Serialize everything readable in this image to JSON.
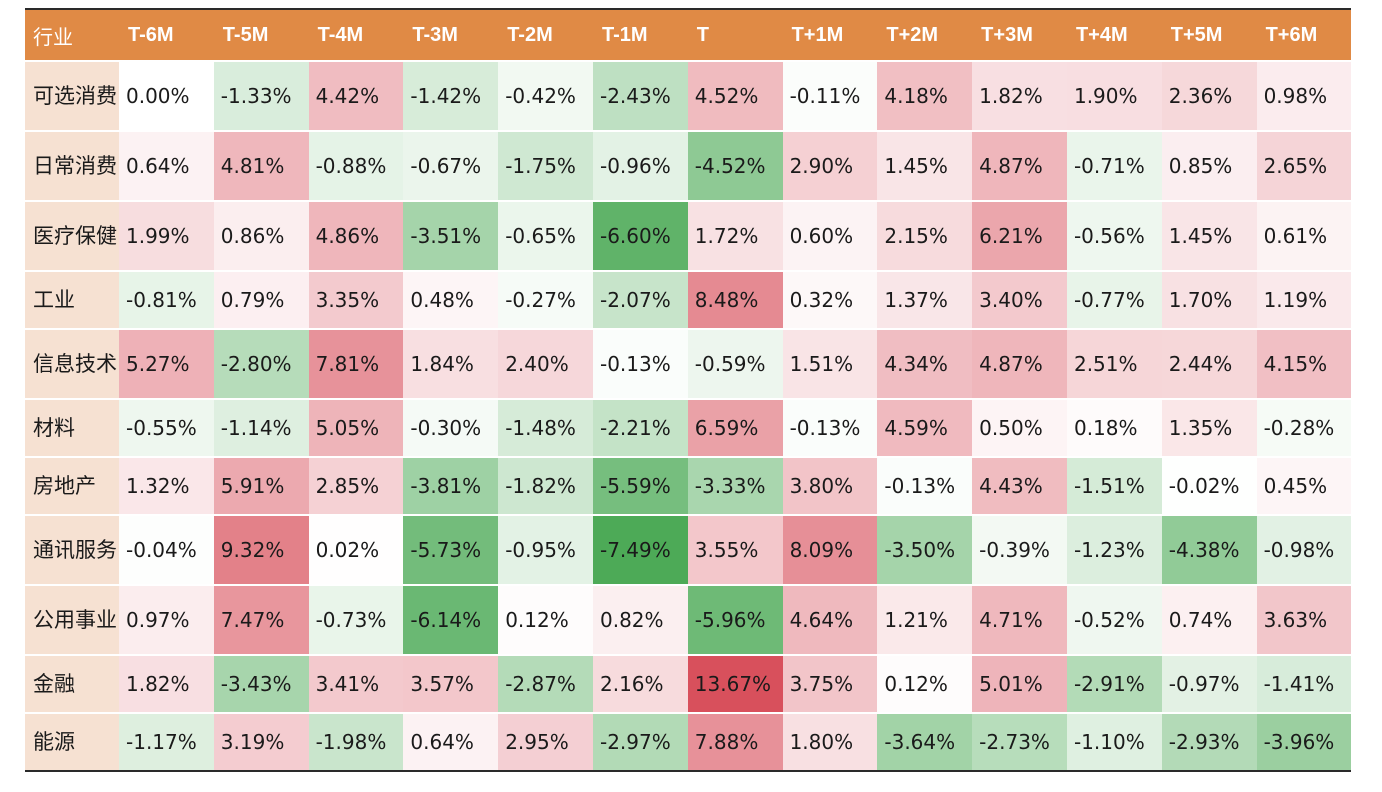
{
  "table": {
    "corner_label": "行业",
    "columns": [
      "T-6M",
      "T-5M",
      "T-4M",
      "T-3M",
      "T-2M",
      "T-1M",
      "T",
      "T+1M",
      "T+2M",
      "T+3M",
      "T+4M",
      "T+5M",
      "T+6M"
    ],
    "rows": [
      {
        "label": "可选消费",
        "cells": [
          "0.00%",
          "-1.33%",
          "4.42%",
          "-1.42%",
          "-0.42%",
          "-2.43%",
          "4.52%",
          "-0.11%",
          "4.18%",
          "1.82%",
          "1.90%",
          "2.36%",
          "0.98%"
        ]
      },
      {
        "label": "日常消费",
        "cells": [
          "0.64%",
          "4.81%",
          "-0.88%",
          "-0.67%",
          "-1.75%",
          "-0.96%",
          "-4.52%",
          "2.90%",
          "1.45%",
          "4.87%",
          "-0.71%",
          "0.85%",
          "2.65%"
        ]
      },
      {
        "label": "医疗保健",
        "cells": [
          "1.99%",
          "0.86%",
          "4.86%",
          "-3.51%",
          "-0.65%",
          "-6.60%",
          "1.72%",
          "0.60%",
          "2.15%",
          "6.21%",
          "-0.56%",
          "1.45%",
          "0.61%"
        ]
      },
      {
        "label": "工业",
        "cells": [
          "-0.81%",
          "0.79%",
          "3.35%",
          "0.48%",
          "-0.27%",
          "-2.07%",
          "8.48%",
          "0.32%",
          "1.37%",
          "3.40%",
          "-0.77%",
          "1.70%",
          "1.19%"
        ]
      },
      {
        "label": "信息技术",
        "cells": [
          "5.27%",
          "-2.80%",
          "7.81%",
          "1.84%",
          "2.40%",
          "-0.13%",
          "-0.59%",
          "1.51%",
          "4.34%",
          "4.87%",
          "2.51%",
          "2.44%",
          "4.15%"
        ]
      },
      {
        "label": "材料",
        "cells": [
          "-0.55%",
          "-1.14%",
          "5.05%",
          "-0.30%",
          "-1.48%",
          "-2.21%",
          "6.59%",
          "-0.13%",
          "4.59%",
          "0.50%",
          "0.18%",
          "1.35%",
          "-0.28%"
        ]
      },
      {
        "label": "房地产",
        "cells": [
          "1.32%",
          "5.91%",
          "2.85%",
          "-3.81%",
          "-1.82%",
          "-5.59%",
          "-3.33%",
          "3.80%",
          "-0.13%",
          "4.43%",
          "-1.51%",
          "-0.02%",
          "0.45%"
        ]
      },
      {
        "label": "通讯服务",
        "cells": [
          "-0.04%",
          "9.32%",
          "0.02%",
          "-5.73%",
          "-0.95%",
          "-7.49%",
          "3.55%",
          "8.09%",
          "-3.50%",
          "-0.39%",
          "-1.23%",
          "-4.38%",
          "-0.98%"
        ]
      },
      {
        "label": "公用事业",
        "cells": [
          "0.97%",
          "7.47%",
          "-0.73%",
          "-6.14%",
          "0.12%",
          "0.82%",
          "-5.96%",
          "4.64%",
          "1.21%",
          "4.71%",
          "-0.52%",
          "0.74%",
          "3.63%"
        ]
      },
      {
        "label": "金融",
        "cells": [
          "1.82%",
          "-3.43%",
          "3.41%",
          "3.57%",
          "-2.87%",
          "2.16%",
          "13.67%",
          "3.75%",
          "0.12%",
          "5.01%",
          "-2.91%",
          "-0.97%",
          "-1.41%"
        ]
      },
      {
        "label": "能源",
        "cells": [
          "-1.17%",
          "3.19%",
          "-1.98%",
          "0.64%",
          "2.95%",
          "-2.97%",
          "7.88%",
          "1.80%",
          "-3.64%",
          "-2.73%",
          "-1.10%",
          "-2.93%",
          "-3.96%"
        ]
      }
    ]
  },
  "colors": {
    "header_bg": "#e08a45",
    "rowhead_bg": "#f6e1d2",
    "positive": "#d8505c",
    "negative": "#4daa57",
    "neutral": "#ffffff"
  },
  "chart_data": {
    "type": "heatmap",
    "x": [
      "T-6M",
      "T-5M",
      "T-4M",
      "T-3M",
      "T-2M",
      "T-1M",
      "T",
      "T+1M",
      "T+2M",
      "T+3M",
      "T+4M",
      "T+5M",
      "T+6M"
    ],
    "y": [
      "可选消费",
      "日常消费",
      "医疗保健",
      "工业",
      "信息技术",
      "材料",
      "房地产",
      "通讯服务",
      "公用事业",
      "金融",
      "能源"
    ],
    "values": [
      [
        0.0,
        -1.33,
        4.42,
        -1.42,
        -0.42,
        -2.43,
        4.52,
        -0.11,
        4.18,
        1.82,
        1.9,
        2.36,
        0.98
      ],
      [
        0.64,
        4.81,
        -0.88,
        -0.67,
        -1.75,
        -0.96,
        -4.52,
        2.9,
        1.45,
        4.87,
        -0.71,
        0.85,
        2.65
      ],
      [
        1.99,
        0.86,
        4.86,
        -3.51,
        -0.65,
        -6.6,
        1.72,
        0.6,
        2.15,
        6.21,
        -0.56,
        1.45,
        0.61
      ],
      [
        -0.81,
        0.79,
        3.35,
        0.48,
        -0.27,
        -2.07,
        8.48,
        0.32,
        1.37,
        3.4,
        -0.77,
        1.7,
        1.19
      ],
      [
        5.27,
        -2.8,
        7.81,
        1.84,
        2.4,
        -0.13,
        -0.59,
        1.51,
        4.34,
        4.87,
        2.51,
        2.44,
        4.15
      ],
      [
        -0.55,
        -1.14,
        5.05,
        -0.3,
        -1.48,
        -2.21,
        6.59,
        -0.13,
        4.59,
        0.5,
        0.18,
        1.35,
        -0.28
      ],
      [
        1.32,
        5.91,
        2.85,
        -3.81,
        -1.82,
        -5.59,
        -3.33,
        3.8,
        -0.13,
        4.43,
        -1.51,
        -0.02,
        0.45
      ],
      [
        -0.04,
        9.32,
        0.02,
        -5.73,
        -0.95,
        -7.49,
        3.55,
        8.09,
        -3.5,
        -0.39,
        -1.23,
        -4.38,
        -0.98
      ],
      [
        0.97,
        7.47,
        -0.73,
        -6.14,
        0.12,
        0.82,
        -5.96,
        4.64,
        1.21,
        4.71,
        -0.52,
        0.74,
        3.63
      ],
      [
        1.82,
        -3.43,
        3.41,
        3.57,
        -2.87,
        2.16,
        13.67,
        3.75,
        0.12,
        5.01,
        -2.91,
        -0.97,
        -1.41
      ],
      [
        -1.17,
        3.19,
        -1.98,
        0.64,
        2.95,
        -2.97,
        7.88,
        1.8,
        -3.64,
        -2.73,
        -1.1,
        -2.93,
        -3.96
      ]
    ],
    "unit": "%"
  }
}
